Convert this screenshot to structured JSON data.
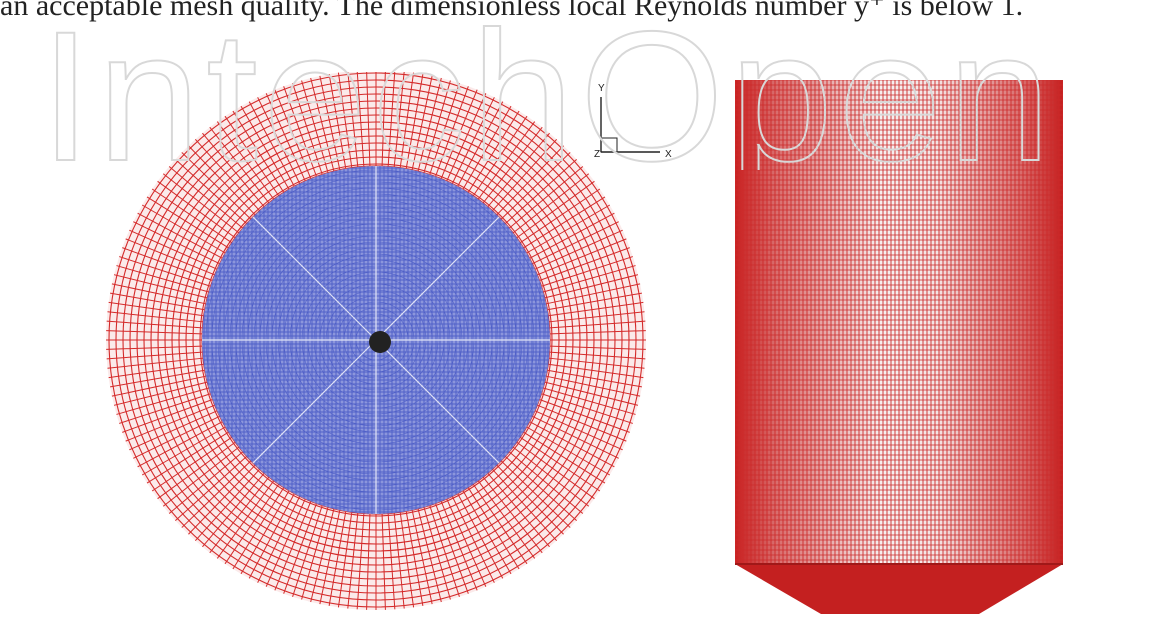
{
  "paper": {
    "body_text_line": "an acceptable mesh quality. The dimensionless local Reynolds number y⁺ is below 1."
  },
  "watermark": {
    "text": "IntechOpen"
  },
  "figure": {
    "top_view": {
      "axis_y_label": "Y",
      "axis_x_label": "X",
      "axis_z_label": "Z",
      "colors": {
        "outer_mesh": "#d42a2a",
        "inner_mesh": "#5060c8",
        "core": "#222222"
      }
    },
    "side_view": {
      "colors": {
        "shell": "#cc2b2b",
        "highlight": "#f4f4f4",
        "cone": "#c42020"
      }
    }
  }
}
